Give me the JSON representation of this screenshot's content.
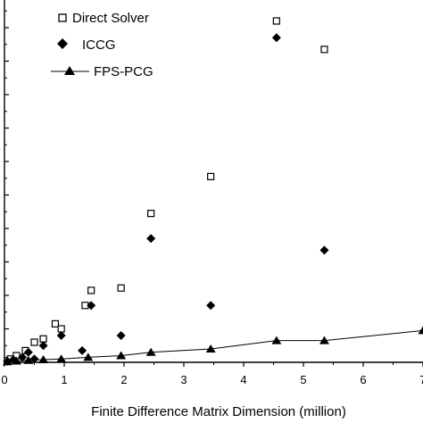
{
  "chart_data": {
    "type": "scatter",
    "xlabel": "Finite Difference Matrix Dimension (million)",
    "ylabel": "",
    "xlim": [
      0,
      7
    ],
    "ylim": [
      0,
      1.05
    ],
    "x_ticks": [
      0,
      1,
      2,
      3,
      4,
      5,
      6,
      7
    ],
    "x_tick_labels": [
      "0",
      "1",
      "2",
      "3",
      "4",
      "5",
      "6",
      "7"
    ],
    "y_ticks": [
      0,
      0.1,
      0.2,
      0.3,
      0.4,
      0.5,
      0.6,
      0.7,
      0.8,
      0.9,
      1.0
    ],
    "grid": false,
    "legend_position": "top-left",
    "series": [
      {
        "name": "Direct Solver",
        "marker": "open-square",
        "line": false,
        "color": "#000000",
        "points": [
          {
            "x": 0.05,
            "y": 0.005
          },
          {
            "x": 0.1,
            "y": 0.01
          },
          {
            "x": 0.2,
            "y": 0.02
          },
          {
            "x": 0.35,
            "y": 0.035
          },
          {
            "x": 0.5,
            "y": 0.06
          },
          {
            "x": 0.65,
            "y": 0.07
          },
          {
            "x": 0.85,
            "y": 0.115
          },
          {
            "x": 0.95,
            "y": 0.1
          },
          {
            "x": 1.35,
            "y": 0.17
          },
          {
            "x": 1.45,
            "y": 0.215
          },
          {
            "x": 1.95,
            "y": 0.222
          },
          {
            "x": 2.45,
            "y": 0.445
          },
          {
            "x": 3.45,
            "y": 0.555
          },
          {
            "x": 4.55,
            "y": 1.02
          },
          {
            "x": 5.35,
            "y": 0.935
          }
        ]
      },
      {
        "name": "ICCG",
        "marker": "filled-diamond",
        "line": false,
        "color": "#000000",
        "points": [
          {
            "x": 0.05,
            "y": 0.003
          },
          {
            "x": 0.15,
            "y": 0.008
          },
          {
            "x": 0.3,
            "y": 0.015
          },
          {
            "x": 0.4,
            "y": 0.03
          },
          {
            "x": 0.5,
            "y": 0.01
          },
          {
            "x": 0.65,
            "y": 0.05
          },
          {
            "x": 0.95,
            "y": 0.08
          },
          {
            "x": 1.3,
            "y": 0.035
          },
          {
            "x": 1.45,
            "y": 0.17
          },
          {
            "x": 1.95,
            "y": 0.08
          },
          {
            "x": 2.45,
            "y": 0.37
          },
          {
            "x": 3.45,
            "y": 0.17
          },
          {
            "x": 4.55,
            "y": 0.97
          },
          {
            "x": 5.35,
            "y": 0.335
          }
        ]
      },
      {
        "name": "FPS-PCG",
        "marker": "filled-triangle",
        "line": true,
        "color": "#000000",
        "points": [
          {
            "x": 0.05,
            "y": 0.002
          },
          {
            "x": 0.2,
            "y": 0.004
          },
          {
            "x": 0.4,
            "y": 0.006
          },
          {
            "x": 0.65,
            "y": 0.008
          },
          {
            "x": 0.95,
            "y": 0.01
          },
          {
            "x": 1.4,
            "y": 0.015
          },
          {
            "x": 1.95,
            "y": 0.02
          },
          {
            "x": 2.45,
            "y": 0.03
          },
          {
            "x": 3.45,
            "y": 0.04
          },
          {
            "x": 4.55,
            "y": 0.065
          },
          {
            "x": 5.35,
            "y": 0.065
          },
          {
            "x": 7.0,
            "y": 0.095
          }
        ]
      }
    ]
  }
}
